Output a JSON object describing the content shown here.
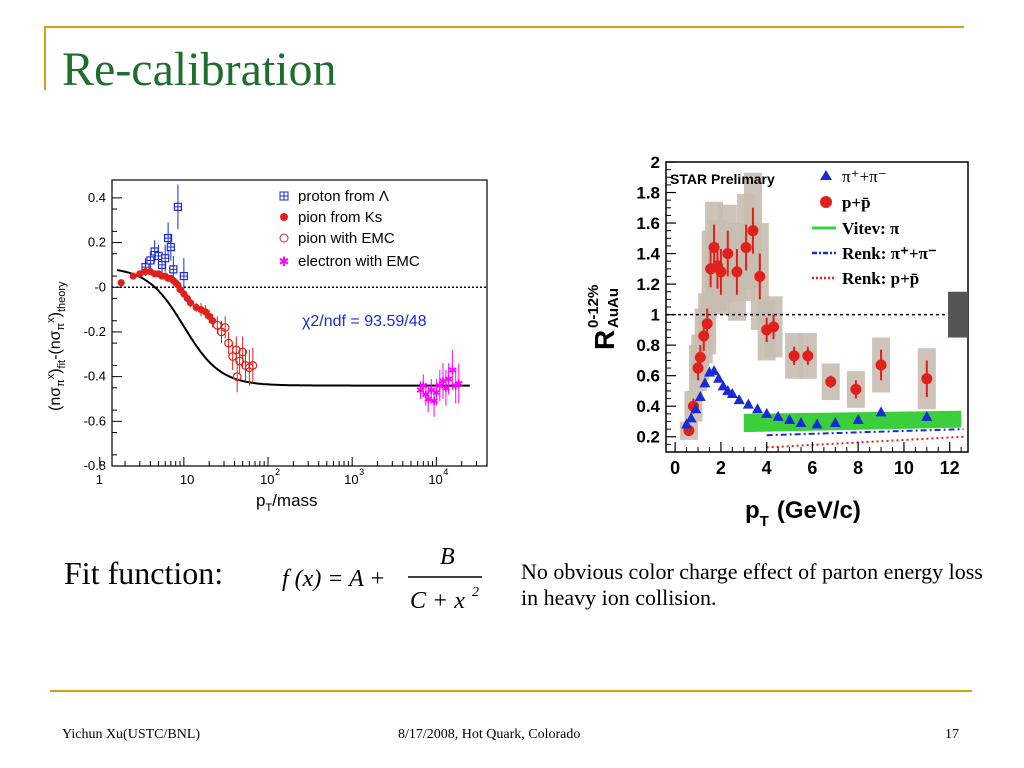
{
  "slide": {
    "title": "Re-calibration",
    "fit_label": "Fit function:",
    "formula": {
      "lhs": "f (x) = A +",
      "numerator": "B",
      "denominator": "C + x",
      "exponent": "2"
    },
    "conclusion": "No obvious color charge effect of parton energy loss in heavy ion collision.",
    "footer": {
      "author": "Yichun Xu(USTC/BNL)",
      "event": "8/17/2008, Hot Quark, Colorado",
      "page": "17"
    }
  },
  "colors": {
    "accent": "#d4a017",
    "title": "#1f6e2e",
    "blue": "#1a2bd6",
    "red": "#e0201a",
    "magenta": "#ff00ff",
    "green": "#3ccf3c",
    "band": "#c8bdb0"
  },
  "chart_data": [
    {
      "type": "scatter",
      "xscale": "log",
      "xlabel": "p_T/mass",
      "ylabel": "(nσπx)fit-(nσπx)theory",
      "xlim": [
        1.4,
        40000
      ],
      "ylim": [
        -0.8,
        0.48
      ],
      "x_ticks": [
        {
          "v": 1,
          "label": "1"
        },
        {
          "v": 10,
          "label": "10"
        },
        {
          "v": 100,
          "label": "10",
          "exp": "2"
        },
        {
          "v": 1000,
          "label": "10",
          "exp": "3"
        },
        {
          "v": 10000,
          "label": "10",
          "exp": "4"
        }
      ],
      "y_ticks": [
        {
          "v": 0.4,
          "label": "0.4"
        },
        {
          "v": 0.2,
          "label": "0.2"
        },
        {
          "v": 0,
          "label": "-0"
        },
        {
          "v": -0.2,
          "label": "-0.2"
        },
        {
          "v": -0.4,
          "label": "-0.4"
        },
        {
          "v": -0.6,
          "label": "-0.6"
        },
        {
          "v": -0.8,
          "label": "-0.8"
        }
      ],
      "annotation": "χ2/ndf = 93.59/48",
      "fit": {
        "A": -0.44,
        "B": 53,
        "C": 100
      },
      "legend_position": "top-right",
      "series": [
        {
          "name": "proton from Λ",
          "marker": "open-cross",
          "color": "#1a2bd6",
          "points": [
            [
              3.5,
              0.09,
              0.04
            ],
            [
              4,
              0.12,
              0.04
            ],
            [
              4.5,
              0.16,
              0.05
            ],
            [
              5,
              0.14,
              0.05
            ],
            [
              5.5,
              0.1,
              0.05
            ],
            [
              6,
              0.13,
              0.06
            ],
            [
              6.5,
              0.22,
              0.07
            ],
            [
              7,
              0.18,
              0.06
            ],
            [
              7.5,
              0.08,
              0.06
            ],
            [
              8.5,
              0.36,
              0.1
            ],
            [
              10,
              0.05,
              0.08
            ]
          ]
        },
        {
          "name": "pion from Ks",
          "marker": "filled-circle",
          "color": "#e0201a",
          "points": [
            [
              1.8,
              0.02,
              0.01
            ],
            [
              2.5,
              0.05,
              0.01
            ],
            [
              3,
              0.06,
              0.01
            ],
            [
              3.5,
              0.07,
              0.01
            ],
            [
              4,
              0.07,
              0.01
            ],
            [
              4.5,
              0.06,
              0.01
            ],
            [
              5,
              0.06,
              0.01
            ],
            [
              5.5,
              0.05,
              0.01
            ],
            [
              6,
              0.05,
              0.01
            ],
            [
              6.5,
              0.04,
              0.01
            ],
            [
              7,
              0.04,
              0.01
            ],
            [
              7.5,
              0.03,
              0.01
            ],
            [
              8,
              0.02,
              0.01
            ],
            [
              8.5,
              0.01,
              0.015
            ],
            [
              9,
              -0.01,
              0.015
            ],
            [
              10,
              -0.03,
              0.02
            ],
            [
              11,
              -0.05,
              0.02
            ],
            [
              12,
              -0.07,
              0.02
            ],
            [
              14,
              -0.09,
              0.02
            ],
            [
              16,
              -0.1,
              0.03
            ],
            [
              18,
              -0.11,
              0.03
            ],
            [
              20,
              -0.13,
              0.03
            ],
            [
              22,
              -0.15,
              0.03
            ]
          ]
        },
        {
          "name": "pion with EMC",
          "marker": "open-circle",
          "color": "#e0201a",
          "points": [
            [
              25,
              -0.17,
              0.04
            ],
            [
              28,
              -0.2,
              0.05
            ],
            [
              31,
              -0.18,
              0.05
            ],
            [
              34,
              -0.25,
              0.05
            ],
            [
              38,
              -0.31,
              0.06
            ],
            [
              42,
              -0.28,
              0.06
            ],
            [
              46,
              -0.33,
              0.06
            ],
            [
              50,
              -0.29,
              0.07
            ],
            [
              54,
              -0.35,
              0.07
            ],
            [
              60,
              -0.36,
              0.08
            ],
            [
              66,
              -0.35,
              0.08
            ],
            [
              43,
              -0.4,
              0.07
            ]
          ]
        },
        {
          "name": "electron with EMC",
          "marker": "star",
          "color": "#ff00ff",
          "points": [
            [
              6500,
              -0.46,
              0.04
            ],
            [
              7000,
              -0.44,
              0.05
            ],
            [
              7500,
              -0.48,
              0.05
            ],
            [
              8000,
              -0.5,
              0.06
            ],
            [
              8700,
              -0.46,
              0.05
            ],
            [
              9400,
              -0.51,
              0.07
            ],
            [
              10000,
              -0.47,
              0.06
            ],
            [
              11000,
              -0.44,
              0.07
            ],
            [
              12000,
              -0.42,
              0.08
            ],
            [
              13000,
              -0.45,
              0.08
            ],
            [
              14000,
              -0.41,
              0.07
            ],
            [
              15500,
              -0.37,
              0.09
            ],
            [
              17000,
              -0.44,
              0.08
            ],
            [
              18500,
              -0.43,
              0.09
            ]
          ]
        }
      ]
    },
    {
      "type": "scatter",
      "title": "STAR Prelimary",
      "xlabel": "p",
      "xlabel_sub": "T",
      "xlabel_units": "(GeV/c)",
      "ylabel": "R",
      "ylabel_sup": "0-12%",
      "ylabel_sub": "AuAu",
      "xlim": [
        -0.4,
        12.8
      ],
      "ylim": [
        0.1,
        2.0
      ],
      "x_ticks": [
        0,
        2,
        4,
        6,
        8,
        10,
        12
      ],
      "y_ticks": [
        {
          "v": 0.2,
          "label": "0.2"
        },
        {
          "v": 0.4,
          "label": "0.4"
        },
        {
          "v": 0.6,
          "label": "0.6"
        },
        {
          "v": 0.8,
          "label": "0.8"
        },
        {
          "v": 1.0,
          "label": "1"
        },
        {
          "v": 1.2,
          "label": "1.2"
        },
        {
          "v": 1.4,
          "label": "1.4"
        },
        {
          "v": 1.6,
          "label": "1.6"
        },
        {
          "v": 1.8,
          "label": "1.8"
        },
        {
          "v": 2.0,
          "label": "2"
        }
      ],
      "legend_position": "top-right",
      "legend": [
        {
          "label": "π⁺+π⁻",
          "marker": "triangle",
          "color": "#1a2bd6"
        },
        {
          "label": "p+p̄",
          "marker": "circle",
          "color": "#e0201a"
        },
        {
          "label": "Vitev: π",
          "marker": "solid-line",
          "color": "#3ccf3c"
        },
        {
          "label": "Renk: π⁺+π⁻",
          "marker": "dash-dot",
          "color": "#1a2bd6"
        },
        {
          "label": "Renk: p+p̄",
          "marker": "dotted",
          "color": "#e0201a"
        }
      ],
      "pions": [
        [
          0.5,
          0.28
        ],
        [
          0.7,
          0.32
        ],
        [
          0.9,
          0.38
        ],
        [
          1.1,
          0.46
        ],
        [
          1.3,
          0.55
        ],
        [
          1.5,
          0.62
        ],
        [
          1.7,
          0.63
        ],
        [
          1.9,
          0.58
        ],
        [
          2.1,
          0.53
        ],
        [
          2.3,
          0.5
        ],
        [
          2.5,
          0.48
        ],
        [
          2.8,
          0.44
        ],
        [
          3.2,
          0.41
        ],
        [
          3.6,
          0.38
        ],
        [
          4,
          0.35
        ],
        [
          4.5,
          0.33
        ],
        [
          5,
          0.31
        ],
        [
          5.5,
          0.29
        ],
        [
          6.2,
          0.28
        ],
        [
          7,
          0.29
        ],
        [
          8,
          0.31
        ],
        [
          9,
          0.36
        ],
        [
          11,
          0.33
        ]
      ],
      "protons": [
        [
          0.6,
          0.24,
          0.03,
          0.06
        ],
        [
          0.8,
          0.4,
          0.05,
          0.1
        ],
        [
          1.0,
          0.65,
          0.08,
          0.15
        ],
        [
          1.1,
          0.72,
          0.08,
          0.15
        ],
        [
          1.25,
          0.86,
          0.1,
          0.18
        ],
        [
          1.4,
          0.94,
          0.1,
          0.2
        ],
        [
          1.55,
          1.3,
          0.12,
          0.25
        ],
        [
          1.7,
          1.44,
          0.15,
          0.3
        ],
        [
          1.85,
          1.32,
          0.15,
          0.3
        ],
        [
          2.0,
          1.28,
          0.15,
          0.28
        ],
        [
          2.3,
          1.4,
          0.15,
          0.32
        ],
        [
          2.7,
          1.28,
          0.15,
          0.32
        ],
        [
          3.1,
          1.44,
          0.15,
          0.35
        ],
        [
          3.4,
          1.55,
          0.15,
          0.38
        ],
        [
          3.7,
          1.25,
          0.15,
          0.35
        ],
        [
          4.0,
          0.9,
          0.08,
          0.2
        ],
        [
          4.3,
          0.92,
          0.08,
          0.2
        ],
        [
          5.2,
          0.73,
          0.06,
          0.15
        ],
        [
          5.8,
          0.73,
          0.06,
          0.15
        ],
        [
          6.8,
          0.56,
          0.04,
          0.12
        ],
        [
          7.9,
          0.51,
          0.06,
          0.12
        ],
        [
          9.0,
          0.67,
          0.1,
          0.18
        ],
        [
          11.0,
          0.58,
          0.12,
          0.2
        ]
      ],
      "vitev_band": [
        [
          3,
          0.23,
          0.35
        ],
        [
          12.5,
          0.26,
          0.37
        ]
      ],
      "renk_pion": [
        [
          4,
          0.21
        ],
        [
          12.6,
          0.25
        ]
      ],
      "renk_proton": [
        [
          4,
          0.13
        ],
        [
          12.6,
          0.2
        ]
      ],
      "norm_box": [
        0.85,
        1.15
      ]
    }
  ]
}
